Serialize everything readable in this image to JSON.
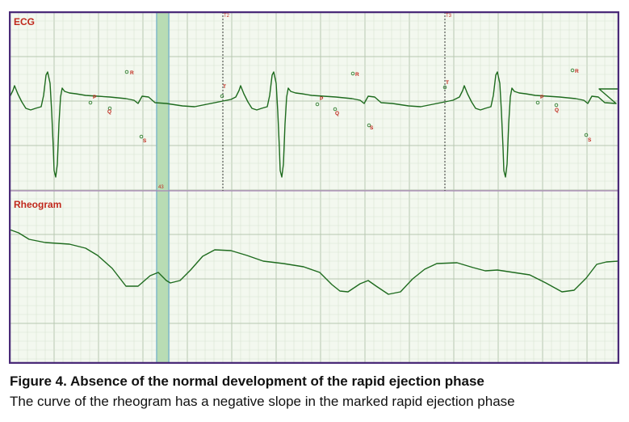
{
  "colors": {
    "frame": "#4a2a78",
    "background": "#f3f8ef",
    "grid_minor": "#d9e4d2",
    "grid_major": "#b7c7b0",
    "separator": "#a884b8",
    "trace": "#1e6b1e",
    "label": "#c0281c",
    "marker": "#2e7d2e",
    "highlight": "#b8dcb4",
    "highlight_edge": "#7fb8c8"
  },
  "caption": {
    "title": "Figure 4. Absence of the normal development of the rapid ejection phase",
    "text": "The curve of the rheogram has a negative slope in the marked rapid ejection phase"
  },
  "chart_data": {
    "type": "line",
    "grid": true,
    "panels": [
      {
        "title": "ECG"
      },
      {
        "title": "Rheogram"
      }
    ],
    "rapid_ejection_band": {
      "label": "43"
    },
    "time_markers": [
      {
        "label": "T2"
      },
      {
        "label": "T3"
      }
    ],
    "wave_labels": [
      "P",
      "Q",
      "R",
      "S",
      "T",
      "P",
      "Q",
      "R",
      "S",
      "T",
      "P",
      "Q",
      "R",
      "S"
    ]
  }
}
